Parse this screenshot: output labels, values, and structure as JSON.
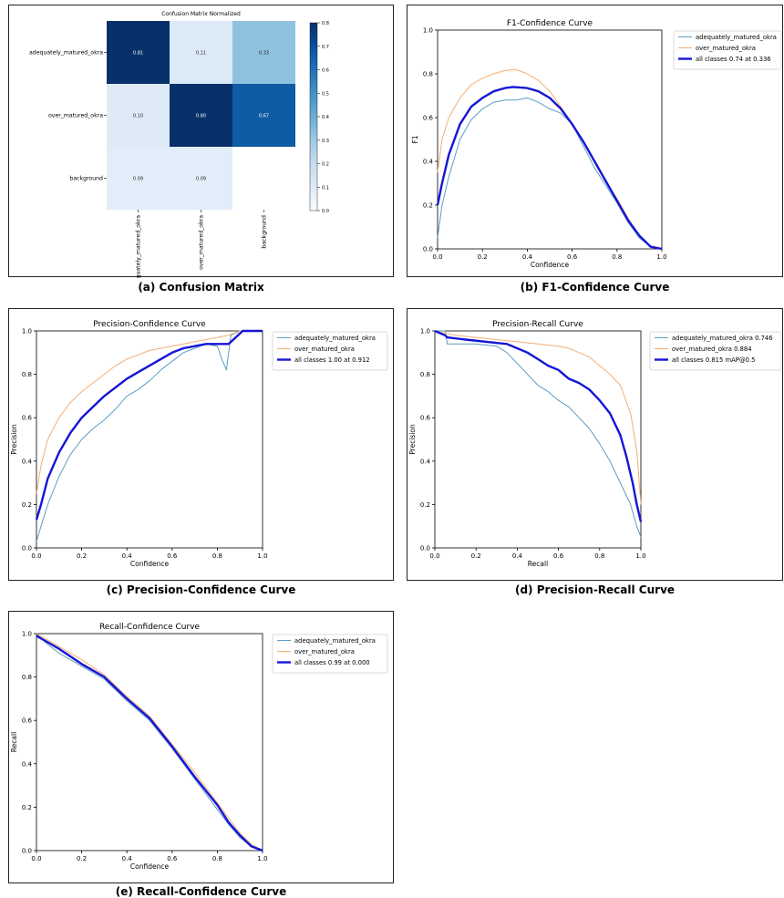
{
  "colors": {
    "adequately": "#5b9dc4",
    "over": "#f4ae72",
    "all": "#1515d6",
    "cm_dark": "#08306b",
    "cm_light": "#f7fbff"
  },
  "chart_data": [
    {
      "id": "cm",
      "type": "heatmap",
      "title": "Confusion Matrix Normalized",
      "caption": "(a) Confusion Matrix",
      "row_labels": [
        "adequately_matured_okra",
        "over_matured_okra",
        "background"
      ],
      "col_labels": [
        "adequately_matured_okra",
        "over_matured_okra",
        "background"
      ],
      "values": [
        [
          0.81,
          0.11,
          0.33
        ],
        [
          0.1,
          0.8,
          0.67
        ],
        [
          0.09,
          0.09,
          null
        ]
      ],
      "cell_labels": [
        [
          "0.81",
          "0.11",
          "0.33"
        ],
        [
          "0.10",
          "0.80",
          "0.67"
        ],
        [
          "0.09",
          "0.09",
          ""
        ]
      ],
      "colorbar": {
        "min": 0.0,
        "max": 0.8,
        "ticks": [
          "0.8",
          "0.7",
          "0.6",
          "0.5",
          "0.4",
          "0.3",
          "0.2",
          "0.1",
          "0.0"
        ]
      }
    },
    {
      "id": "f1",
      "type": "line",
      "title": "F1-Confidence Curve",
      "caption": "(b) F1-Confidence Curve",
      "xlabel": "Confidence",
      "ylabel": "F1",
      "xlim": [
        0,
        1
      ],
      "ylim": [
        0,
        1
      ],
      "xticks": [
        "0.0",
        "0.2",
        "0.4",
        "0.6",
        "0.8",
        "1.0"
      ],
      "yticks": [
        "0.0",
        "0.2",
        "0.4",
        "0.6",
        "0.8",
        "1.0"
      ],
      "legend_position": "outside-right",
      "series": [
        {
          "name": "adequately_matured_okra",
          "color_key": "adequately",
          "x": [
            0,
            0.02,
            0.05,
            0.1,
            0.15,
            0.2,
            0.25,
            0.3,
            0.35,
            0.4,
            0.45,
            0.5,
            0.55,
            0.6,
            0.65,
            0.7,
            0.75,
            0.8,
            0.85,
            0.9,
            0.95,
            1.0
          ],
          "y": [
            0.05,
            0.2,
            0.33,
            0.5,
            0.59,
            0.64,
            0.67,
            0.68,
            0.68,
            0.69,
            0.67,
            0.64,
            0.62,
            0.57,
            0.47,
            0.37,
            0.29,
            0.21,
            0.12,
            0.05,
            0.01,
            0.0
          ]
        },
        {
          "name": "over_matured_okra",
          "color_key": "over",
          "x": [
            0,
            0.02,
            0.05,
            0.1,
            0.15,
            0.2,
            0.25,
            0.3,
            0.35,
            0.4,
            0.45,
            0.5,
            0.55,
            0.6,
            0.65,
            0.7,
            0.75,
            0.8,
            0.85,
            0.9,
            0.95,
            1.0
          ],
          "y": [
            0.35,
            0.5,
            0.6,
            0.69,
            0.75,
            0.78,
            0.8,
            0.815,
            0.82,
            0.8,
            0.77,
            0.72,
            0.65,
            0.57,
            0.49,
            0.4,
            0.31,
            0.23,
            0.14,
            0.06,
            0.01,
            0.0
          ]
        },
        {
          "name": "all classes 0.74 at 0.336",
          "color_key": "all",
          "width": 2.4,
          "x": [
            0,
            0.02,
            0.05,
            0.1,
            0.15,
            0.2,
            0.25,
            0.3,
            0.336,
            0.4,
            0.45,
            0.5,
            0.55,
            0.6,
            0.65,
            0.7,
            0.75,
            0.8,
            0.85,
            0.9,
            0.95,
            1.0
          ],
          "y": [
            0.2,
            0.3,
            0.43,
            0.57,
            0.65,
            0.69,
            0.72,
            0.735,
            0.74,
            0.735,
            0.72,
            0.69,
            0.64,
            0.57,
            0.49,
            0.4,
            0.31,
            0.22,
            0.13,
            0.06,
            0.01,
            0.0
          ]
        }
      ]
    },
    {
      "id": "pc",
      "type": "line",
      "title": "Precision-Confidence Curve",
      "caption": "(c) Precision-Confidence Curve",
      "xlabel": "Confidence",
      "ylabel": "Precision",
      "xlim": [
        0,
        1
      ],
      "ylim": [
        0,
        1
      ],
      "xticks": [
        "0.0",
        "0.2",
        "0.4",
        "0.6",
        "0.8",
        "1.0"
      ],
      "yticks": [
        "0.0",
        "0.2",
        "0.4",
        "0.6",
        "0.8",
        "1.0"
      ],
      "legend_position": "top-right",
      "series": [
        {
          "name": "adequately_matured_okra",
          "color_key": "adequately",
          "x": [
            0,
            0.02,
            0.05,
            0.1,
            0.15,
            0.2,
            0.25,
            0.3,
            0.35,
            0.4,
            0.45,
            0.5,
            0.55,
            0.6,
            0.65,
            0.7,
            0.75,
            0.8,
            0.82,
            0.84,
            0.86,
            0.9,
            1.0
          ],
          "y": [
            0.03,
            0.1,
            0.2,
            0.33,
            0.43,
            0.5,
            0.55,
            0.59,
            0.64,
            0.7,
            0.73,
            0.77,
            0.82,
            0.86,
            0.9,
            0.92,
            0.94,
            0.93,
            0.87,
            0.82,
            0.98,
            1.0,
            1.0
          ]
        },
        {
          "name": "over_matured_okra",
          "color_key": "over",
          "x": [
            0,
            0.02,
            0.05,
            0.1,
            0.15,
            0.2,
            0.25,
            0.3,
            0.35,
            0.4,
            0.45,
            0.5,
            0.55,
            0.6,
            0.65,
            0.7,
            0.75,
            0.8,
            0.85,
            0.9,
            1.0
          ],
          "y": [
            0.25,
            0.38,
            0.5,
            0.6,
            0.67,
            0.72,
            0.76,
            0.8,
            0.84,
            0.87,
            0.89,
            0.91,
            0.92,
            0.93,
            0.94,
            0.95,
            0.96,
            0.97,
            0.98,
            1.0,
            1.0
          ]
        },
        {
          "name": "all classes 1.00 at 0.912",
          "color_key": "all",
          "width": 2.4,
          "x": [
            0,
            0.02,
            0.05,
            0.1,
            0.15,
            0.2,
            0.25,
            0.3,
            0.35,
            0.4,
            0.45,
            0.5,
            0.55,
            0.6,
            0.65,
            0.7,
            0.75,
            0.8,
            0.85,
            0.912,
            1.0
          ],
          "y": [
            0.13,
            0.2,
            0.32,
            0.44,
            0.53,
            0.6,
            0.65,
            0.7,
            0.74,
            0.78,
            0.81,
            0.84,
            0.87,
            0.9,
            0.92,
            0.93,
            0.94,
            0.94,
            0.94,
            1.0,
            1.0
          ]
        }
      ]
    },
    {
      "id": "pr",
      "type": "line",
      "title": "Precision-Recall Curve",
      "caption": "(d) Precision-Recall Curve",
      "xlabel": "Recall",
      "ylabel": "Precision",
      "xlim": [
        0,
        1
      ],
      "ylim": [
        0,
        1
      ],
      "xticks": [
        "0.0",
        "0.2",
        "0.4",
        "0.6",
        "0.8",
        "1.0"
      ],
      "yticks": [
        "0.0",
        "0.2",
        "0.4",
        "0.6",
        "0.8",
        "1.0"
      ],
      "legend_position": "outside-right",
      "series": [
        {
          "name": "adequately_matured_okra 0.746",
          "color_key": "adequately",
          "x": [
            0,
            0.05,
            0.06,
            0.2,
            0.3,
            0.35,
            0.4,
            0.45,
            0.5,
            0.55,
            0.6,
            0.65,
            0.7,
            0.75,
            0.8,
            0.85,
            0.9,
            0.95,
            0.98,
            1.0
          ],
          "y": [
            1.0,
            1.0,
            0.94,
            0.94,
            0.93,
            0.9,
            0.85,
            0.8,
            0.75,
            0.72,
            0.68,
            0.65,
            0.6,
            0.55,
            0.48,
            0.4,
            0.3,
            0.2,
            0.1,
            0.05
          ]
        },
        {
          "name": "over_matured_okra 0.884",
          "color_key": "over",
          "x": [
            0,
            0.1,
            0.2,
            0.3,
            0.4,
            0.5,
            0.6,
            0.65,
            0.7,
            0.75,
            0.8,
            0.85,
            0.9,
            0.95,
            0.98,
            1.0
          ],
          "y": [
            1.0,
            0.98,
            0.97,
            0.96,
            0.95,
            0.94,
            0.93,
            0.92,
            0.9,
            0.88,
            0.84,
            0.8,
            0.75,
            0.62,
            0.45,
            0.2
          ]
        },
        {
          "name": "all classes 0.815 mAP@0.5",
          "color_key": "all",
          "width": 2.4,
          "x": [
            0,
            0.05,
            0.06,
            0.15,
            0.25,
            0.35,
            0.45,
            0.5,
            0.55,
            0.6,
            0.65,
            0.7,
            0.75,
            0.8,
            0.85,
            0.9,
            0.93,
            0.96,
            0.98,
            1.0
          ],
          "y": [
            1.0,
            0.98,
            0.97,
            0.96,
            0.95,
            0.94,
            0.9,
            0.87,
            0.84,
            0.82,
            0.78,
            0.76,
            0.73,
            0.68,
            0.62,
            0.52,
            0.42,
            0.3,
            0.2,
            0.12
          ]
        }
      ]
    },
    {
      "id": "rc",
      "type": "line",
      "title": "Recall-Confidence Curve",
      "caption": "(e) Recall-Confidence Curve",
      "xlabel": "Confidence",
      "ylabel": "Recall",
      "xlim": [
        0,
        1
      ],
      "ylim": [
        0,
        1
      ],
      "xticks": [
        "0.0",
        "0.2",
        "0.4",
        "0.6",
        "0.8",
        "1.0"
      ],
      "yticks": [
        "0.0",
        "0.2",
        "0.4",
        "0.6",
        "0.8",
        "1.0"
      ],
      "legend_position": "top-right",
      "series": [
        {
          "name": "adequately_matured_okra",
          "color_key": "adequately",
          "x": [
            0,
            0.05,
            0.1,
            0.2,
            0.3,
            0.4,
            0.5,
            0.6,
            0.7,
            0.8,
            0.85,
            0.9,
            0.95,
            1.0
          ],
          "y": [
            1.0,
            0.95,
            0.91,
            0.85,
            0.79,
            0.69,
            0.6,
            0.47,
            0.33,
            0.19,
            0.12,
            0.06,
            0.02,
            0.0
          ]
        },
        {
          "name": "over_matured_okra",
          "color_key": "over",
          "x": [
            0,
            0.05,
            0.1,
            0.2,
            0.3,
            0.4,
            0.5,
            0.6,
            0.7,
            0.8,
            0.85,
            0.9,
            0.95,
            1.0
          ],
          "y": [
            1.0,
            0.97,
            0.94,
            0.88,
            0.81,
            0.71,
            0.62,
            0.49,
            0.36,
            0.22,
            0.15,
            0.08,
            0.03,
            0.0
          ]
        },
        {
          "name": "all classes 0.99 at 0.000",
          "color_key": "all",
          "width": 2.4,
          "x": [
            0,
            0.05,
            0.1,
            0.2,
            0.3,
            0.4,
            0.5,
            0.6,
            0.7,
            0.8,
            0.85,
            0.9,
            0.95,
            1.0
          ],
          "y": [
            0.99,
            0.96,
            0.93,
            0.86,
            0.8,
            0.7,
            0.61,
            0.48,
            0.34,
            0.21,
            0.13,
            0.07,
            0.02,
            0.0
          ]
        }
      ]
    }
  ]
}
